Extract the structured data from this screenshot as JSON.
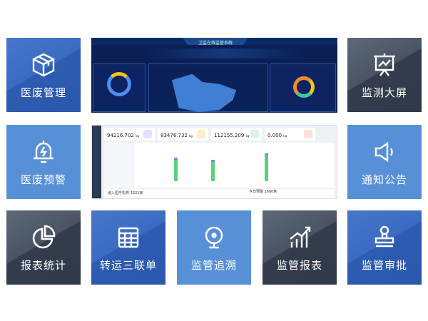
{
  "tiles": [
    {
      "label": "医废管理",
      "icon": "box-icon",
      "style": "blue"
    },
    {
      "label": "监测大屏",
      "icon": "presentation-chart-icon",
      "style": "dark"
    },
    {
      "label": "医废预警",
      "icon": "alarm-bell-icon",
      "style": "light"
    },
    {
      "label": "通知公告",
      "icon": "speaker-icon",
      "style": "light"
    },
    {
      "label": "报表统计",
      "icon": "pie-chart-icon",
      "style": "dark"
    },
    {
      "label": "转运三联单",
      "icon": "table-grid-icon",
      "style": "blue"
    },
    {
      "label": "监管追溯",
      "icon": "camera-icon",
      "style": "light"
    },
    {
      "label": "监管报表",
      "icon": "bar-trend-icon",
      "style": "dark"
    },
    {
      "label": "监管审批",
      "icon": "stamp-icon",
      "style": "blue"
    }
  ],
  "dashboard": {
    "title": "卫监在线监管系统"
  },
  "admin": {
    "cards": [
      {
        "value": "94216.702",
        "unit": "kg",
        "color": "#dfe0ff"
      },
      {
        "value": "83476.732",
        "unit": "kg",
        "color": "#fdeec0"
      },
      {
        "value": "112155.209",
        "unit": "kg",
        "color": "#d8f5e0"
      },
      {
        "value": "0.000",
        "unit": "kg",
        "color": "#fde0d8"
      }
    ],
    "institutions": "纳入医疗机构 3321家",
    "warnings": "今日预警 1600条"
  }
}
